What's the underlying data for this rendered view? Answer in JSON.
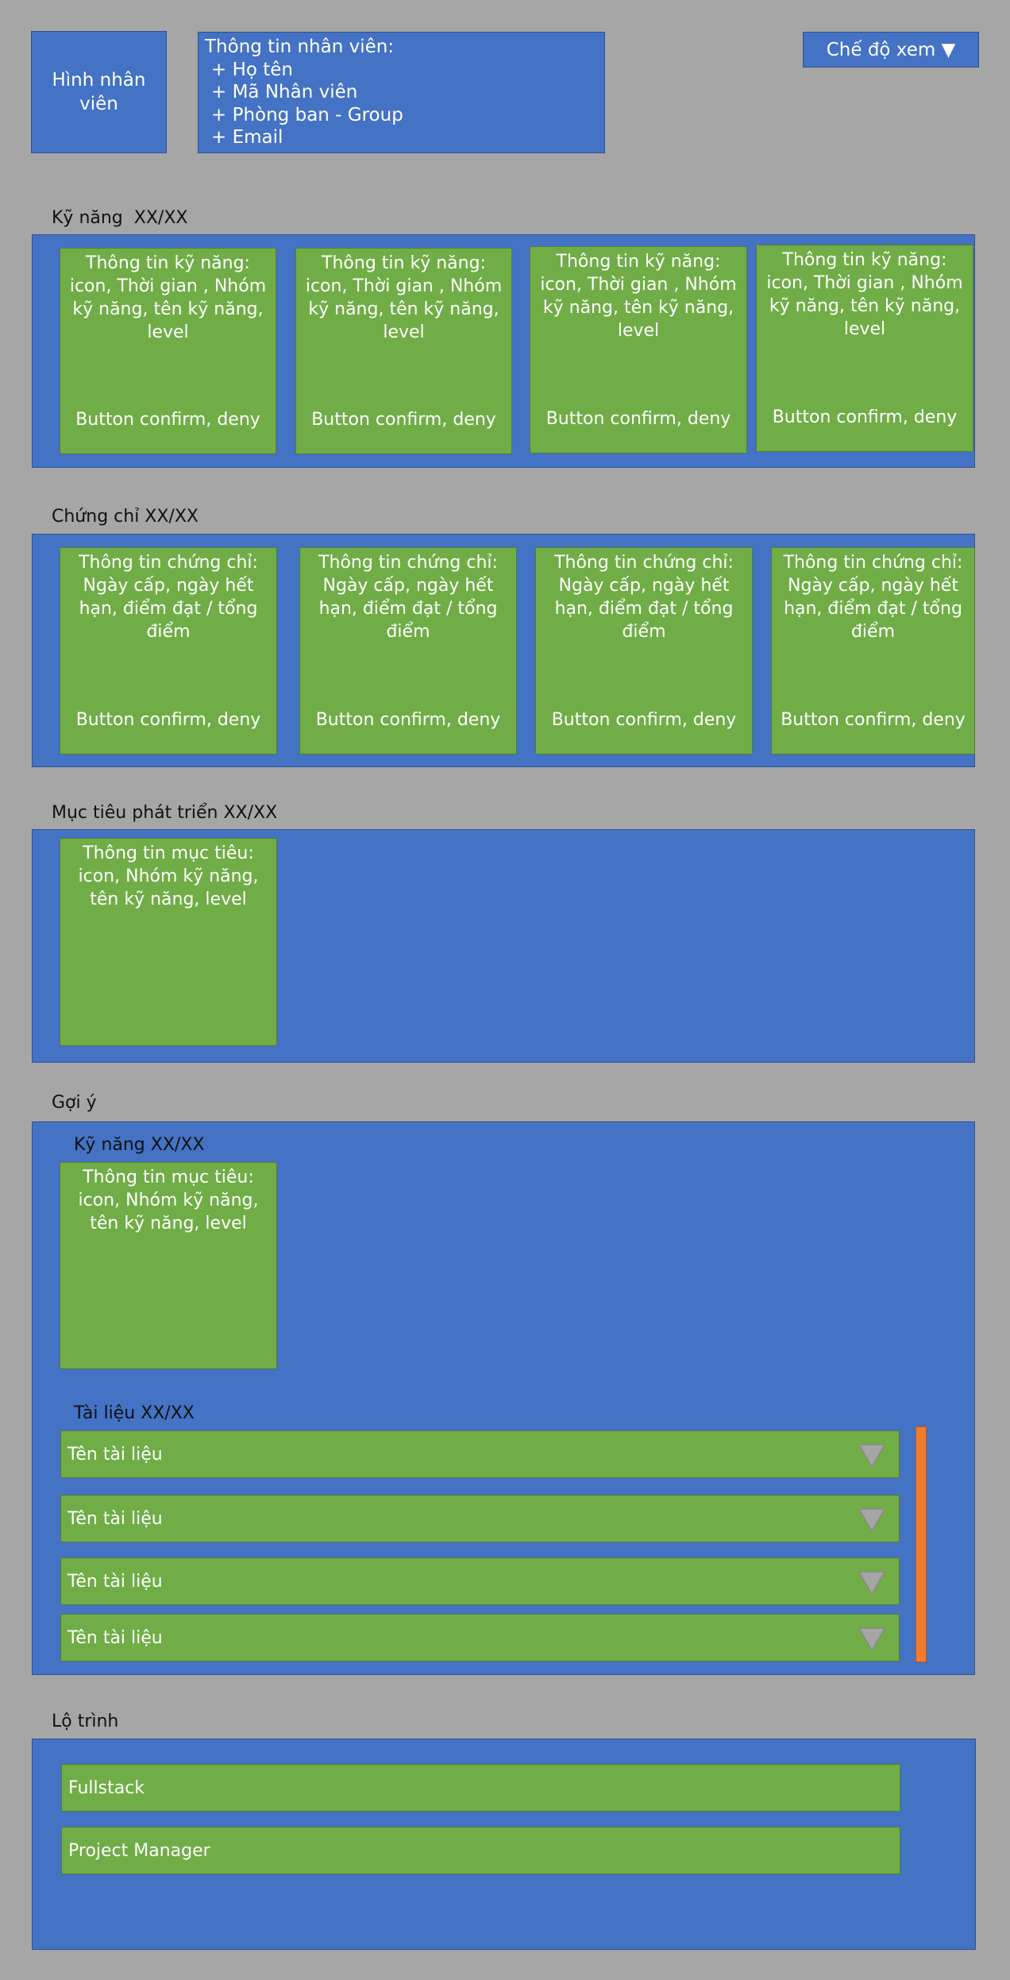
{
  "header": {
    "photo_label": "Hình nhân viên",
    "info_title": "Thông tin nhân viên:",
    "info_lines": [
      "+ Họ tên",
      "+ Mã Nhân viên",
      "+ Phòng ban - Group",
      "+ Email"
    ],
    "view_mode_label": "Chế độ xem ▼"
  },
  "skills": {
    "title": "Kỹ năng  XX/XX",
    "cards": [
      {
        "text": "Thông tin kỹ năng: icon, Thời gian , Nhóm kỹ năng, tên kỹ năng, level",
        "button": "Button confirm, deny"
      },
      {
        "text": "Thông tin kỹ năng: icon, Thời gian , Nhóm kỹ năng, tên kỹ năng, level",
        "button": "Button confirm, deny"
      },
      {
        "text": "Thông tin kỹ năng: icon, Thời gian , Nhóm kỹ năng, tên kỹ năng, level",
        "button": "Button confirm, deny"
      },
      {
        "text": "Thông tin kỹ năng: icon, Thời gian , Nhóm kỹ năng, tên kỹ năng, level",
        "button": "Button confirm, deny"
      }
    ]
  },
  "certificates": {
    "title": "Chứng chỉ XX/XX",
    "cards": [
      {
        "text": "Thông tin chứng chỉ: Ngày cấp, ngày hết hạn, điểm đạt / tổng điểm",
        "button": "Button confirm, deny"
      },
      {
        "text": "Thông tin chứng chỉ: Ngày cấp, ngày hết hạn, điểm đạt / tổng điểm",
        "button": "Button confirm, deny"
      },
      {
        "text": "Thông tin chứng chỉ: Ngày cấp, ngày hết hạn, điểm đạt / tổng điểm",
        "button": "Button confirm, deny"
      },
      {
        "text": "Thông tin chứng chỉ: Ngày cấp, ngày hết hạn, điểm đạt / tổng điểm",
        "button": "Button confirm, deny"
      }
    ]
  },
  "goals": {
    "title": "Mục tiêu phát triển XX/XX",
    "cards": [
      {
        "text": "Thông tin mục tiêu: icon, Nhóm kỹ năng, tên kỹ năng, level"
      }
    ]
  },
  "suggestions": {
    "title": "Gợi ý",
    "skills_title": "Kỹ năng XX/XX",
    "skill_cards": [
      {
        "text": "Thông tin mục tiêu: icon, Nhóm kỹ năng, tên kỹ năng, level"
      }
    ],
    "docs_title": "Tài liệu XX/XX",
    "docs": [
      "Tên tài liệu",
      "Tên tài liệu",
      "Tên tài liệu",
      "Tên tài liệu"
    ]
  },
  "roadmap": {
    "title": "Lộ trình",
    "items": [
      "Fullstack",
      "Project Manager"
    ]
  },
  "colors": {
    "background": "#a6a6a6",
    "panel_blue": "#4472c4",
    "card_green": "#70ad47",
    "scrollbar_orange": "#ed7d31"
  }
}
